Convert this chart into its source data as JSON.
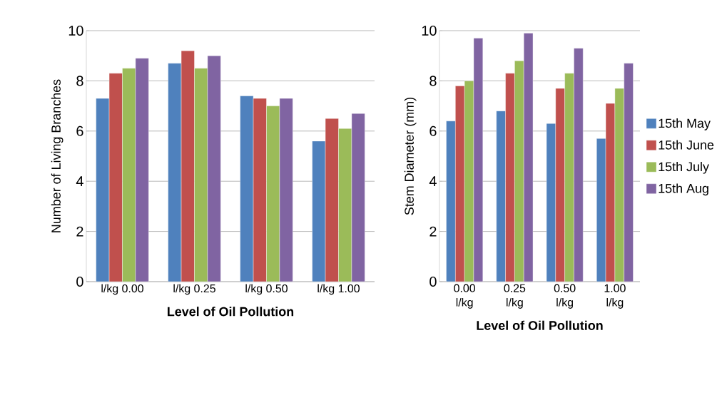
{
  "chart_data": [
    {
      "type": "bar",
      "ylabel": "Number of Living Branches",
      "xlabel": "Level of Oil Pollution",
      "categories": [
        "l/kg 0.00",
        "l/kg 0.25",
        "l/kg 0.50",
        "l/kg 1.00"
      ],
      "series": [
        {
          "color": "#4f81bd",
          "values": [
            7.3,
            8.7,
            7.4,
            5.6
          ]
        },
        {
          "color": "#c0504d",
          "values": [
            8.3,
            9.2,
            7.3,
            6.5
          ]
        },
        {
          "color": "#9bbb59",
          "values": [
            8.5,
            8.5,
            7.0,
            6.1
          ]
        },
        {
          "color": "#8064a2",
          "values": [
            8.9,
            9.0,
            7.3,
            6.7
          ]
        }
      ],
      "ylim": [
        0,
        10
      ],
      "yticks": [
        0,
        2,
        4,
        6,
        8,
        10
      ],
      "grid": "y"
    },
    {
      "type": "bar",
      "ylabel": "Stem Diameter (mm)",
      "xlabel": "Level of Oil Pollution",
      "categories": [
        "0.00 l/kg",
        "0.25 l/kg",
        "0.50 l/kg",
        "1.00 l/kg"
      ],
      "series": [
        {
          "name": "15th May",
          "color": "#4f81bd",
          "values": [
            6.4,
            6.8,
            6.3,
            5.7
          ]
        },
        {
          "name": "15th June",
          "color": "#c0504d",
          "values": [
            7.8,
            8.3,
            7.7,
            7.1
          ]
        },
        {
          "name": "15th July",
          "color": "#9bbb59",
          "values": [
            8.0,
            8.8,
            8.3,
            7.7
          ]
        },
        {
          "name": "15th Aug",
          "color": "#8064a2",
          "values": [
            9.7,
            9.9,
            9.3,
            8.7
          ]
        }
      ],
      "ylim": [
        0,
        10
      ],
      "yticks": [
        0,
        2,
        4,
        6,
        8,
        10
      ],
      "grid": "y",
      "legend": "right"
    }
  ]
}
